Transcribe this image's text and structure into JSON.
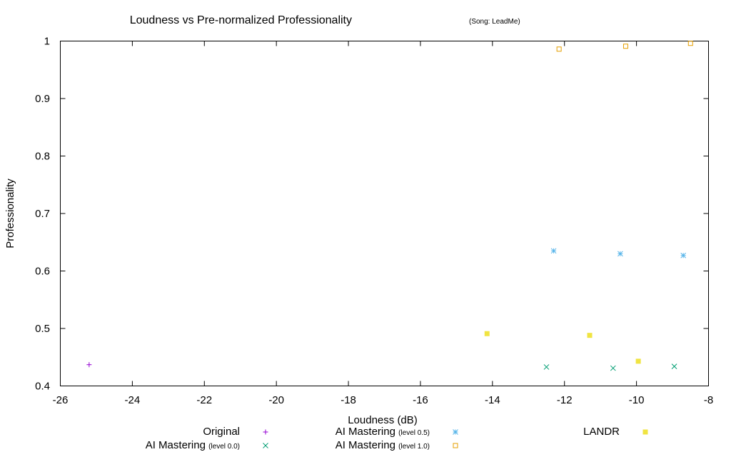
{
  "chart_data": {
    "type": "scatter",
    "title": "Loudness vs Pre-normalized Professionality",
    "subtitle": "(Song: LeadMe)",
    "xlabel": "Loudness (dB)",
    "ylabel": "Professionality",
    "xlim": [
      -26,
      -8
    ],
    "ylim": [
      0.4,
      1.0
    ],
    "xticks": [
      "-26",
      "-24",
      "-22",
      "-20",
      "-18",
      "-16",
      "-14",
      "-12",
      "-10",
      "-8"
    ],
    "yticks": [
      "0.4",
      "0.5",
      "0.6",
      "0.7",
      "0.8",
      "0.9",
      "1"
    ],
    "grid": false,
    "legend_position": "bottom",
    "series": [
      {
        "name": "Original",
        "note": "",
        "marker": "plus",
        "color": "#9400d3",
        "points": [
          [
            -25.2,
            0.437
          ]
        ]
      },
      {
        "name": "AI Mastering",
        "note": "(level 0.0)",
        "marker": "cross",
        "color": "#009e73",
        "points": [
          [
            -12.5,
            0.433
          ],
          [
            -10.65,
            0.431
          ],
          [
            -8.95,
            0.434
          ]
        ]
      },
      {
        "name": "AI Mastering",
        "note": "(level 0.5)",
        "marker": "star",
        "color": "#56b4e9",
        "points": [
          [
            -12.3,
            0.635
          ],
          [
            -10.45,
            0.63
          ],
          [
            -8.7,
            0.627
          ]
        ]
      },
      {
        "name": "AI Mastering",
        "note": "(level 1.0)",
        "marker": "square-open",
        "color": "#e69f00",
        "points": [
          [
            -12.15,
            0.986
          ],
          [
            -10.3,
            0.991
          ],
          [
            -8.5,
            0.996
          ]
        ]
      },
      {
        "name": "LANDR",
        "note": "",
        "marker": "square-filled",
        "color": "#f0e442",
        "points": [
          [
            -14.15,
            0.491
          ],
          [
            -11.3,
            0.488
          ],
          [
            -9.95,
            0.443
          ]
        ]
      }
    ]
  }
}
